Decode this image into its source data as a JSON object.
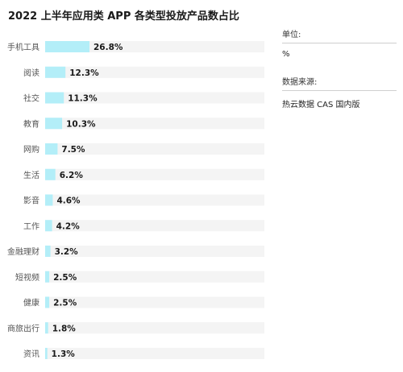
{
  "chart_data": {
    "type": "bar",
    "orientation": "horizontal",
    "title": "2022 上半年应用类 APP 各类型投放产品数占比",
    "categories": [
      "手机工具",
      "阅读",
      "社交",
      "教育",
      "网购",
      "生活",
      "影音",
      "工作",
      "金融理财",
      "短视频",
      "健康",
      "商旅出行",
      "资讯"
    ],
    "values": [
      26.8,
      12.3,
      11.3,
      10.3,
      7.5,
      6.2,
      4.6,
      4.2,
      3.2,
      2.5,
      2.5,
      1.8,
      1.3
    ],
    "value_labels": [
      "26.8%",
      "12.3%",
      "11.3%",
      "10.3%",
      "7.5%",
      "6.2%",
      "4.6%",
      "4.2%",
      "3.2%",
      "2.5%",
      "2.5%",
      "1.8%",
      "1.3%"
    ],
    "xlim": [
      0,
      100
    ],
    "grid": false,
    "legend": "none",
    "colors": {
      "bar": "#b3eef8",
      "track": "#f4f4f4",
      "label": "#555555",
      "value": "#1a1a1a"
    }
  },
  "sidebar": {
    "unit_label": "单位:",
    "unit_value": "%",
    "source_label": "数据来源:",
    "source_value": "热云数据 CAS 国内版"
  }
}
